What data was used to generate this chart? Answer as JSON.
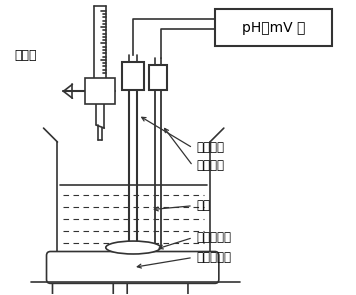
{
  "bg_color": "#ffffff",
  "line_color": "#333333",
  "line_width": 1.2,
  "labels": {
    "burette": "滴定管",
    "indicator_electrode": "指示电极",
    "reference_electrode": "参比电极",
    "solution": "试液",
    "stir_bar": "铁芯搅拌棒",
    "stirrer": "电磁搅拌器",
    "meter": "pH－mV 计"
  },
  "font_size": 8.5
}
